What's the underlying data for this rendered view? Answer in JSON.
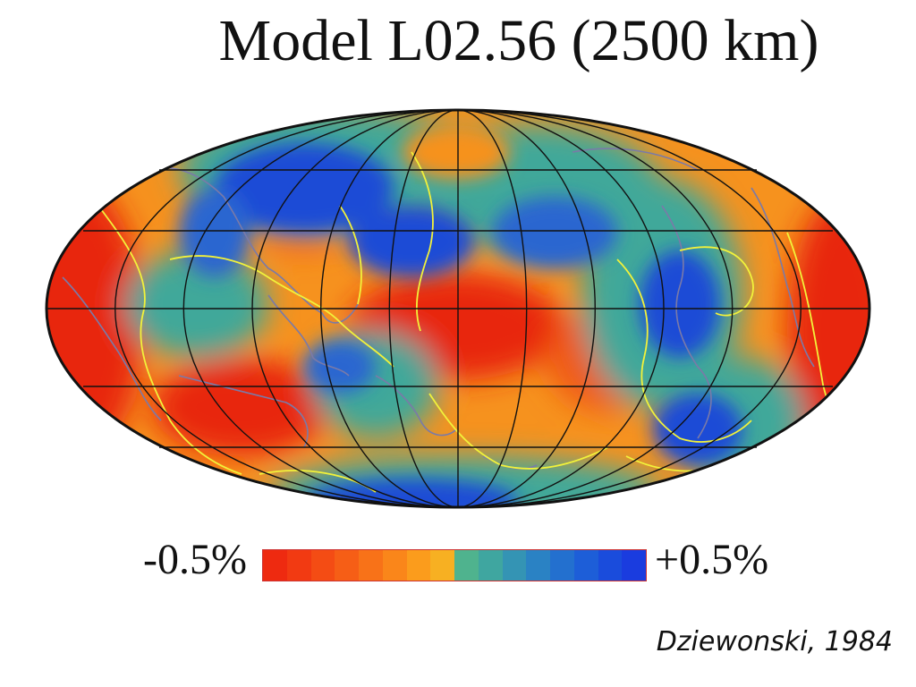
{
  "title": "Model L02.56 (2500 km)",
  "legend": {
    "min_label": "-0.5%",
    "max_label": "+0.5%",
    "colors": [
      "#ee2a10",
      "#f23a12",
      "#f44c14",
      "#f65e16",
      "#f87218",
      "#fa861a",
      "#fb9c1c",
      "#f7b022",
      "#4fb38e",
      "#3fa6a0",
      "#3494b4",
      "#2a82c4",
      "#2370cf",
      "#1d5ed8",
      "#1a4cdc",
      "#1a3cdf"
    ]
  },
  "credit": "Dziewonski, 1984",
  "palette": {
    "red": "#e8260e",
    "orange": "#f6921e",
    "teal": "#3fa89a",
    "blue": "#1b4cd6",
    "plate_boundary": "#f2f23a",
    "coastline": "#7a7aa8",
    "graticule": "#111111"
  }
}
